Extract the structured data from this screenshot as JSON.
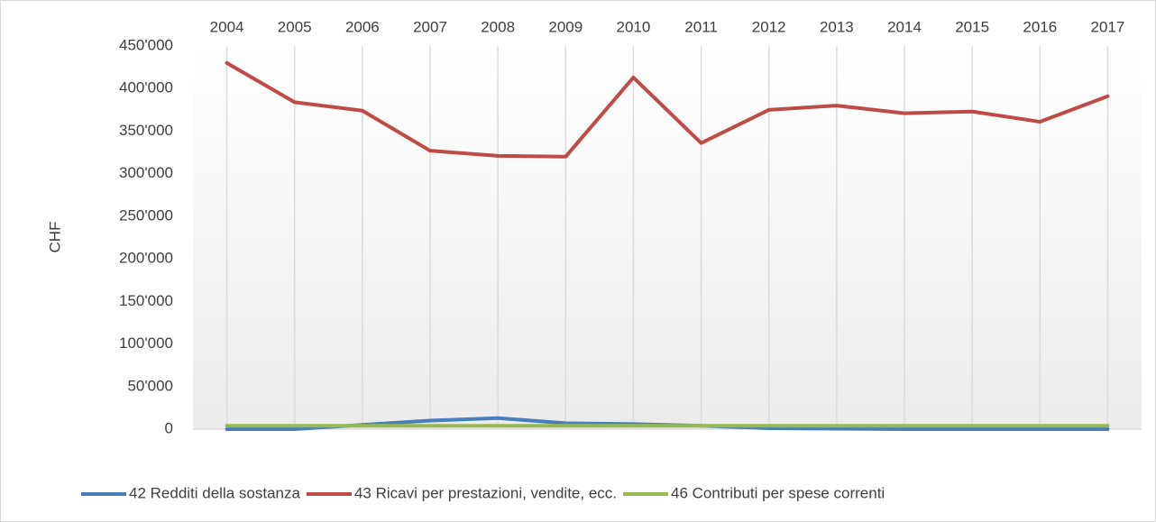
{
  "chart_data": {
    "type": "line",
    "categories": [
      "2004",
      "2005",
      "2006",
      "2007",
      "2008",
      "2009",
      "2010",
      "2011",
      "2012",
      "2013",
      "2014",
      "2015",
      "2016",
      "2017"
    ],
    "y_axis_label": "CHF",
    "ylim": [
      0,
      450000
    ],
    "yticks": [
      0,
      {
        "value": 50000,
        "label": "50'000"
      },
      {
        "value": 100000,
        "label": "100'000"
      },
      {
        "value": 150000,
        "label": "150'000"
      },
      {
        "value": 200000,
        "label": "200'000"
      },
      {
        "value": 250000,
        "label": "250'000"
      },
      {
        "value": 300000,
        "label": "300'000"
      },
      {
        "value": 350000,
        "label": "350'000"
      },
      {
        "value": 400000,
        "label": "400'000"
      },
      {
        "value": 450000,
        "label": "450'000"
      }
    ],
    "grid": true,
    "legend": "bottom",
    "series": [
      {
        "name": "42 Redditi della sostanza",
        "color": "#4a7ebb",
        "values": [
          0,
          0,
          5000,
          10000,
          13000,
          7000,
          6000,
          4000,
          1000,
          500,
          0,
          0,
          0,
          0
        ]
      },
      {
        "name": "43 Ricavi per prestazioni, vendite, ecc.",
        "color": "#be4b48",
        "values": [
          430000,
          384000,
          374000,
          327000,
          321000,
          320000,
          413000,
          336000,
          375000,
          380000,
          371000,
          373000,
          361000,
          391000
        ]
      },
      {
        "name": "46 Contributi per spese correnti",
        "color": "#98b954",
        "values": [
          4000,
          4000,
          4000,
          4000,
          4000,
          4000,
          4000,
          4000,
          4000,
          4000,
          4000,
          4000,
          4000,
          4000
        ]
      }
    ]
  }
}
